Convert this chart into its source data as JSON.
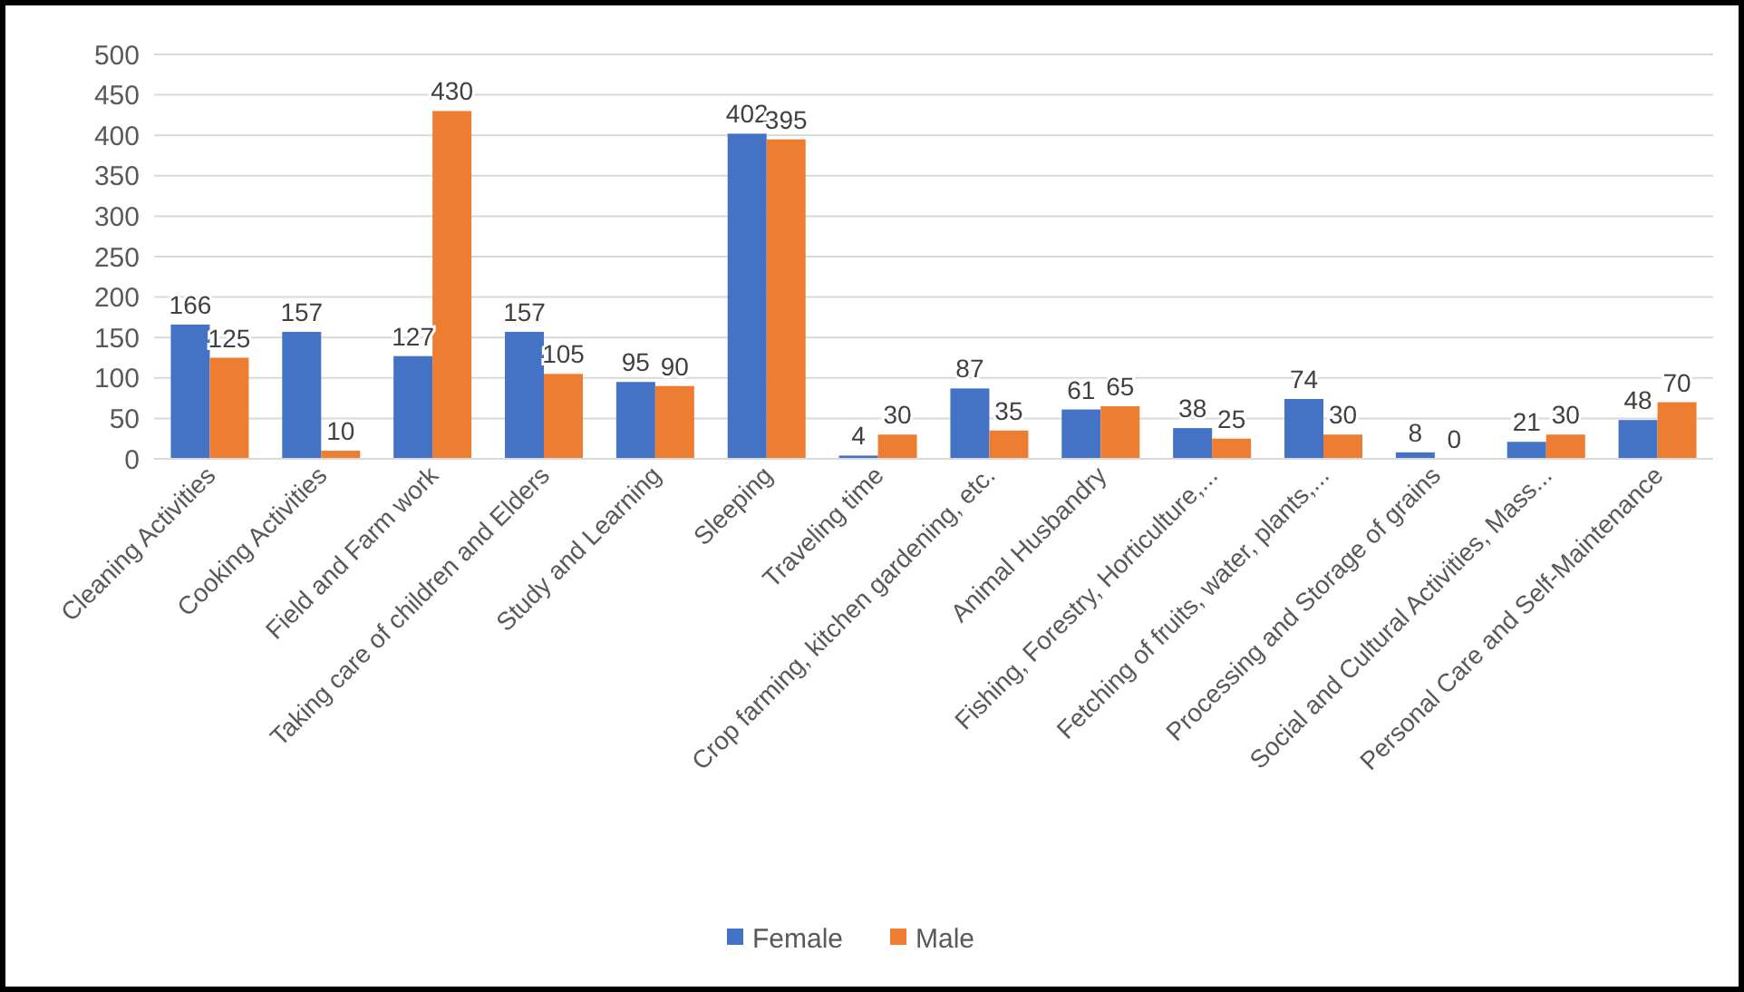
{
  "chart_data": {
    "type": "bar",
    "categories": [
      "Cleaning Activities",
      "Cooking Activities",
      "Field and Farm work",
      "Taking care of children and Elders",
      "Study and Learning",
      "Sleeping",
      "Traveling time",
      "Crop farming, kitchen gardening, etc.",
      "Animal Husbandry",
      "Fishing, Forestry, Horticulture,...",
      "Fetching of fruits, water, plants,...",
      "Processing and Storage of grains",
      "Social and Cultural Activities, Mass...",
      "Personal Care and Self-Maintenance"
    ],
    "series": [
      {
        "name": "Female",
        "color": "#4472c4",
        "values": [
          166,
          157,
          127,
          157,
          95,
          402,
          4,
          87,
          61,
          38,
          74,
          8,
          21,
          48
        ]
      },
      {
        "name": "Male",
        "color": "#ed7d31",
        "values": [
          125,
          10,
          430,
          105,
          90,
          395,
          30,
          35,
          65,
          25,
          30,
          0,
          30,
          70
        ]
      }
    ],
    "ylim": [
      0,
      500
    ],
    "yticks": [
      0,
      50,
      100,
      150,
      200,
      250,
      300,
      350,
      400,
      450,
      500
    ],
    "grid": "y",
    "legend": "bottom",
    "data_labels": true
  }
}
